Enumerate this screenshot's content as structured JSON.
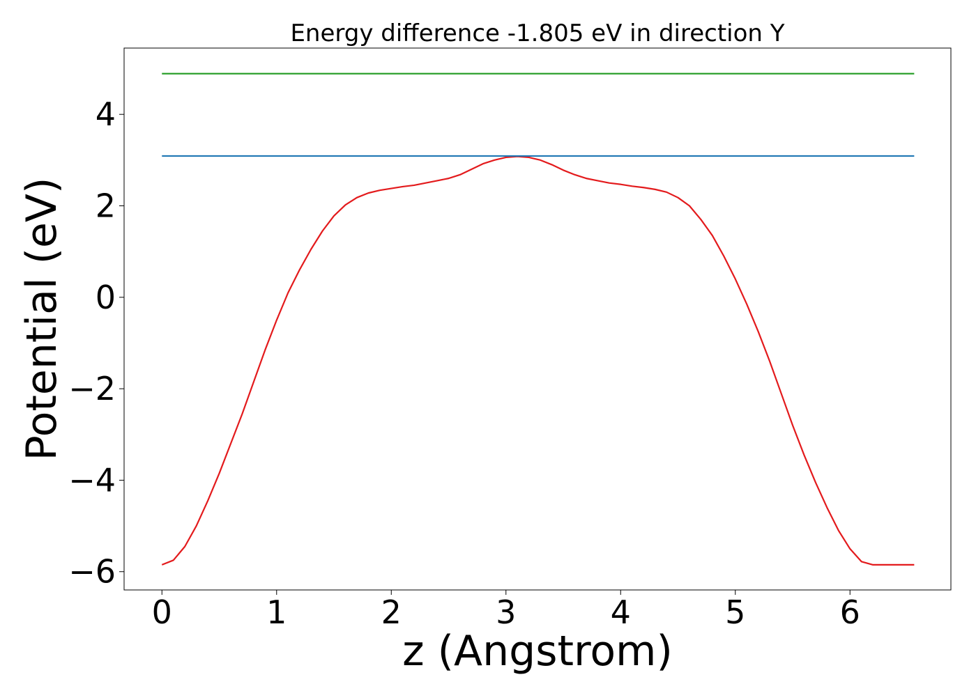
{
  "chart_data": {
    "type": "line",
    "title": "Energy difference -1.805 eV in direction Y",
    "xlabel": "z (Angstrom)",
    "ylabel": "Potential (eV)",
    "xlim": [
      -0.33,
      6.88
    ],
    "ylim": [
      -6.4,
      5.45
    ],
    "xticks": [
      0,
      1,
      2,
      3,
      4,
      5,
      6
    ],
    "yticks": [
      -6,
      -4,
      -2,
      0,
      2,
      4
    ],
    "ytick_labels": [
      "−6",
      "−4",
      "−2",
      "0",
      "2",
      "4"
    ],
    "grid": false,
    "legend": "none",
    "series": [
      {
        "color": "#e31a1c",
        "x": [
          0,
          0.1,
          0.2,
          0.3,
          0.4,
          0.5,
          0.6,
          0.7,
          0.8,
          0.9,
          1.0,
          1.1,
          1.2,
          1.3,
          1.4,
          1.5,
          1.6,
          1.7,
          1.8,
          1.9,
          2.0,
          2.1,
          2.2,
          2.3,
          2.4,
          2.5,
          2.6,
          2.7,
          2.8,
          2.9,
          3.0,
          3.1,
          3.2,
          3.3,
          3.4,
          3.5,
          3.6,
          3.7,
          3.8,
          3.9,
          4.0,
          4.1,
          4.2,
          4.3,
          4.4,
          4.5,
          4.6,
          4.7,
          4.8,
          4.9,
          5.0,
          5.1,
          5.2,
          5.3,
          5.4,
          5.5,
          5.6,
          5.7,
          5.8,
          5.9,
          6.0,
          6.1,
          6.2,
          6.3,
          6.4,
          6.5,
          6.56
        ],
        "y": [
          -5.85,
          -5.75,
          -5.45,
          -5.0,
          -4.45,
          -3.85,
          -3.2,
          -2.55,
          -1.85,
          -1.15,
          -0.5,
          0.1,
          0.6,
          1.05,
          1.45,
          1.78,
          2.02,
          2.18,
          2.28,
          2.34,
          2.38,
          2.42,
          2.45,
          2.5,
          2.55,
          2.6,
          2.68,
          2.8,
          2.92,
          3.0,
          3.06,
          3.08,
          3.06,
          3.0,
          2.9,
          2.78,
          2.68,
          2.6,
          2.55,
          2.5,
          2.47,
          2.43,
          2.4,
          2.36,
          2.3,
          2.18,
          2.0,
          1.7,
          1.35,
          0.9,
          0.4,
          -0.15,
          -0.75,
          -1.4,
          -2.1,
          -2.8,
          -3.45,
          -4.05,
          -4.6,
          -5.1,
          -5.5,
          -5.78,
          -5.85,
          -5.85,
          -5.85,
          -5.85,
          -5.85
        ]
      },
      {
        "color": "#1f77b4",
        "x": [
          0,
          6.56
        ],
        "y": [
          3.09,
          3.09
        ]
      },
      {
        "color": "#2ca02c",
        "x": [
          0,
          6.56
        ],
        "y": [
          4.89,
          4.89
        ]
      }
    ]
  }
}
